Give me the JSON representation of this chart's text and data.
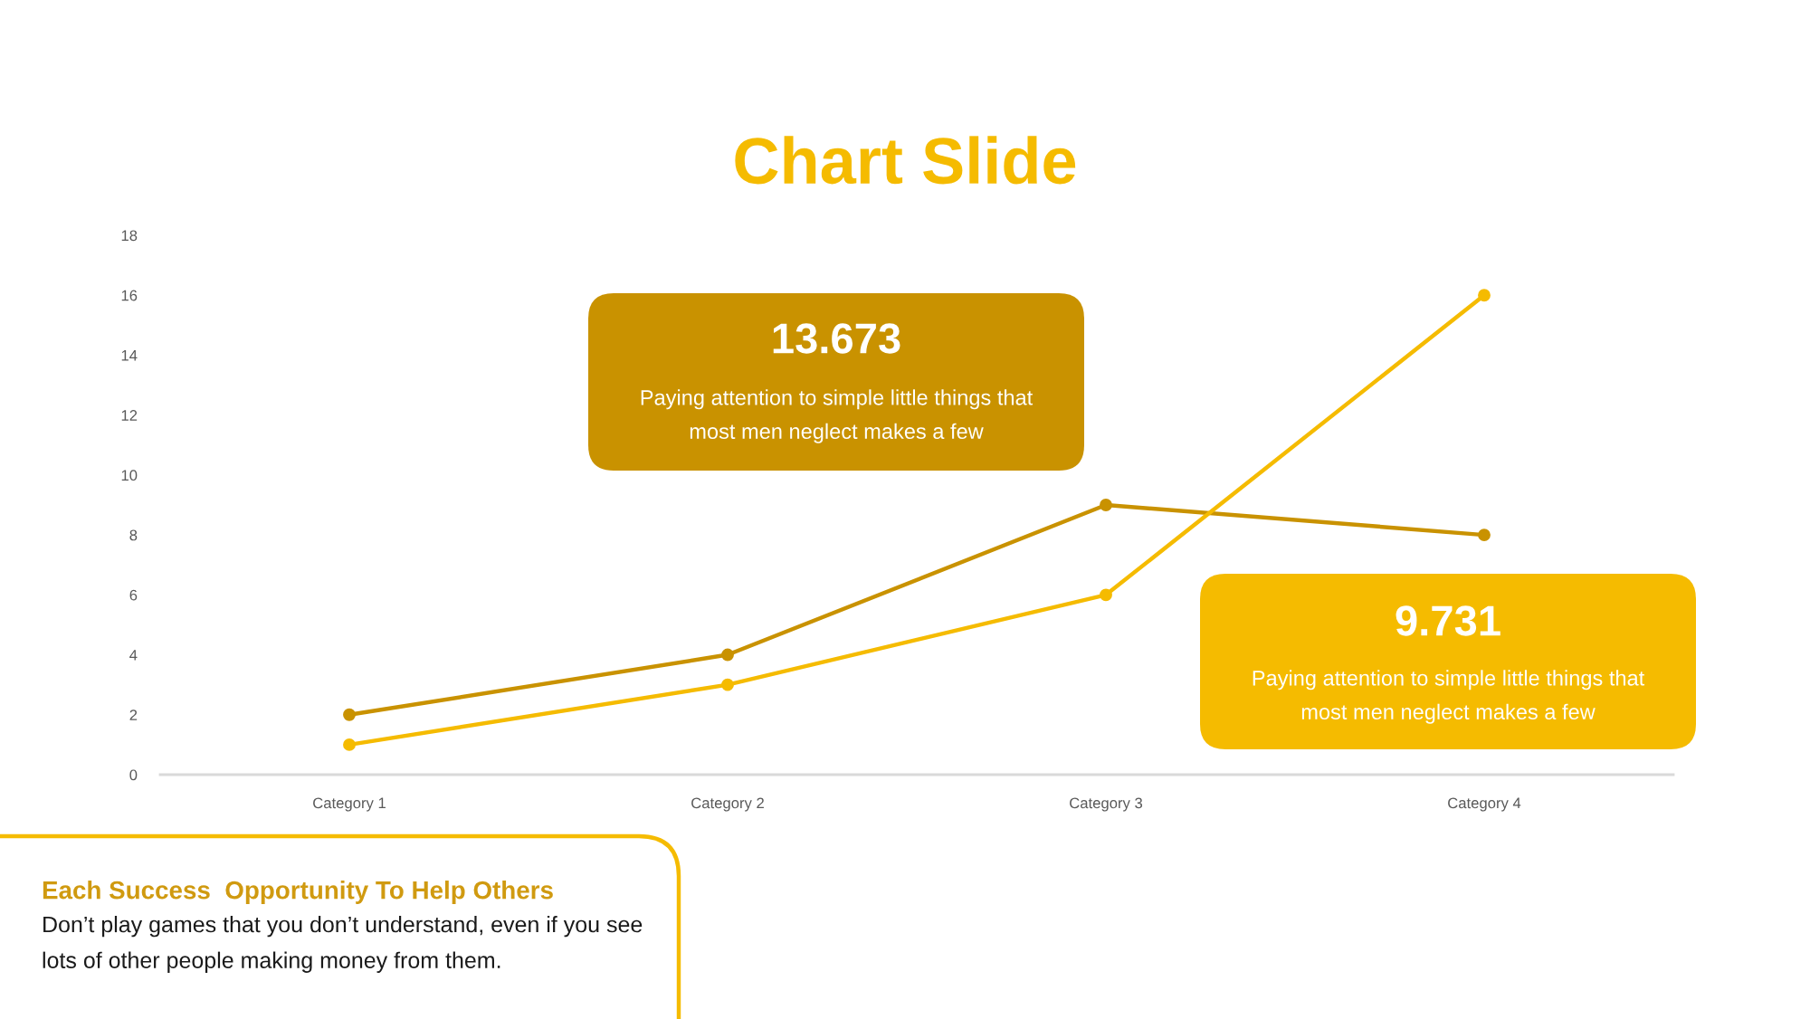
{
  "chart_data": {
    "type": "line",
    "title": "Chart Slide",
    "categories": [
      "Category 1",
      "Category 2",
      "Category 3",
      "Category 4"
    ],
    "series": [
      {
        "color": "#c99200",
        "values": [
          2,
          4,
          9,
          8
        ]
      },
      {
        "color": "#f5bb00",
        "values": [
          1,
          3,
          6,
          16
        ]
      }
    ],
    "ylim": [
      0,
      18
    ],
    "yticks": [
      0,
      2,
      4,
      6,
      8,
      10,
      12,
      14,
      16,
      18
    ],
    "grid": false,
    "marker": "circle",
    "line_style": "solid",
    "annotations": [
      "13.673",
      "Paying attention to simple little things that most men neglect makes a few",
      "9.731",
      "Paying attention to simple little things that most men neglect makes a few",
      "Each Success  Opportunity To Help Others",
      "Don’t play games that you don’t understand, even if you see lots of other people making money from them."
    ]
  }
}
